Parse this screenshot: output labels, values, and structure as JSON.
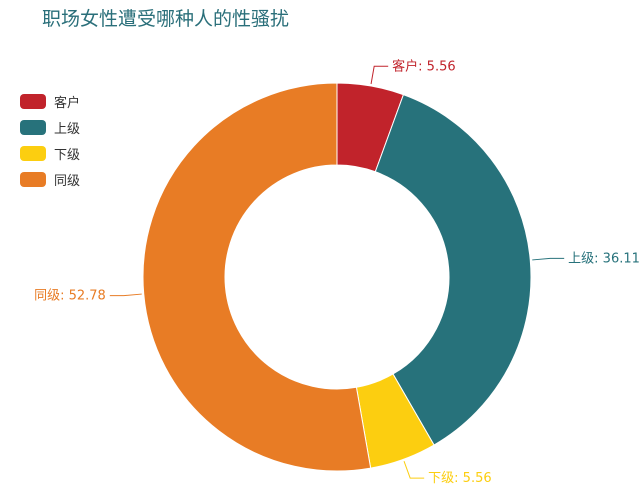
{
  "chart_data": {
    "type": "pie",
    "style": "donut",
    "title": "职场女性遭受哪种人的性骚扰",
    "legend_position": "top-left",
    "categories": [
      "客户",
      "上级",
      "下级",
      "同级"
    ],
    "values": [
      5.56,
      36.11,
      5.56,
      52.78
    ],
    "colors": [
      "#c1232b",
      "#27727b",
      "#fcce10",
      "#e87c25"
    ],
    "labels": [
      "客户: 5.56",
      "上级: 36.11",
      "下级: 5.56",
      "同级: 52.78"
    ]
  }
}
